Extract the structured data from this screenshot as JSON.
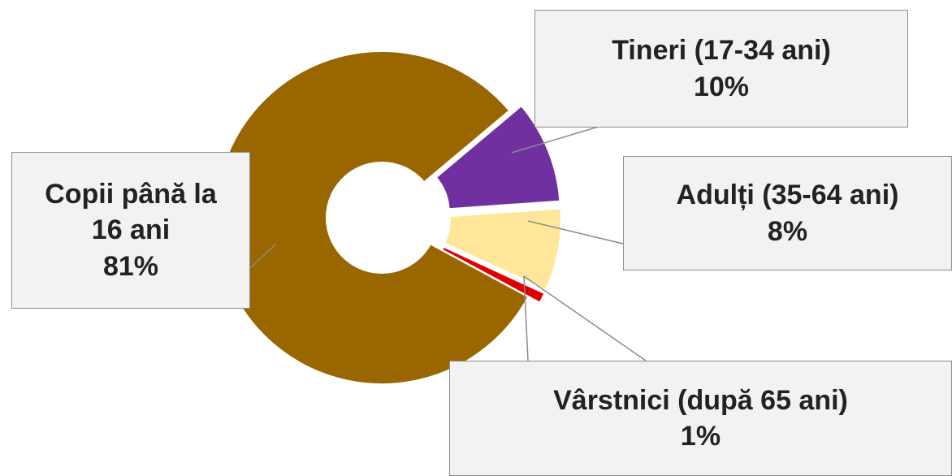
{
  "chart_data": {
    "type": "donut",
    "categories": [
      "Copii până la 16 ani",
      "Tineri (17-34 ani)",
      "Adulți (35-64 ani)",
      "Vârstnici (după 65 ani)"
    ],
    "values": [
      81,
      10,
      8,
      1
    ],
    "value_labels": [
      "81%",
      "10%",
      "8%",
      "1%"
    ],
    "colors": [
      "#996600",
      "#7030a0",
      "#ffe699",
      "#e00000"
    ]
  }
}
